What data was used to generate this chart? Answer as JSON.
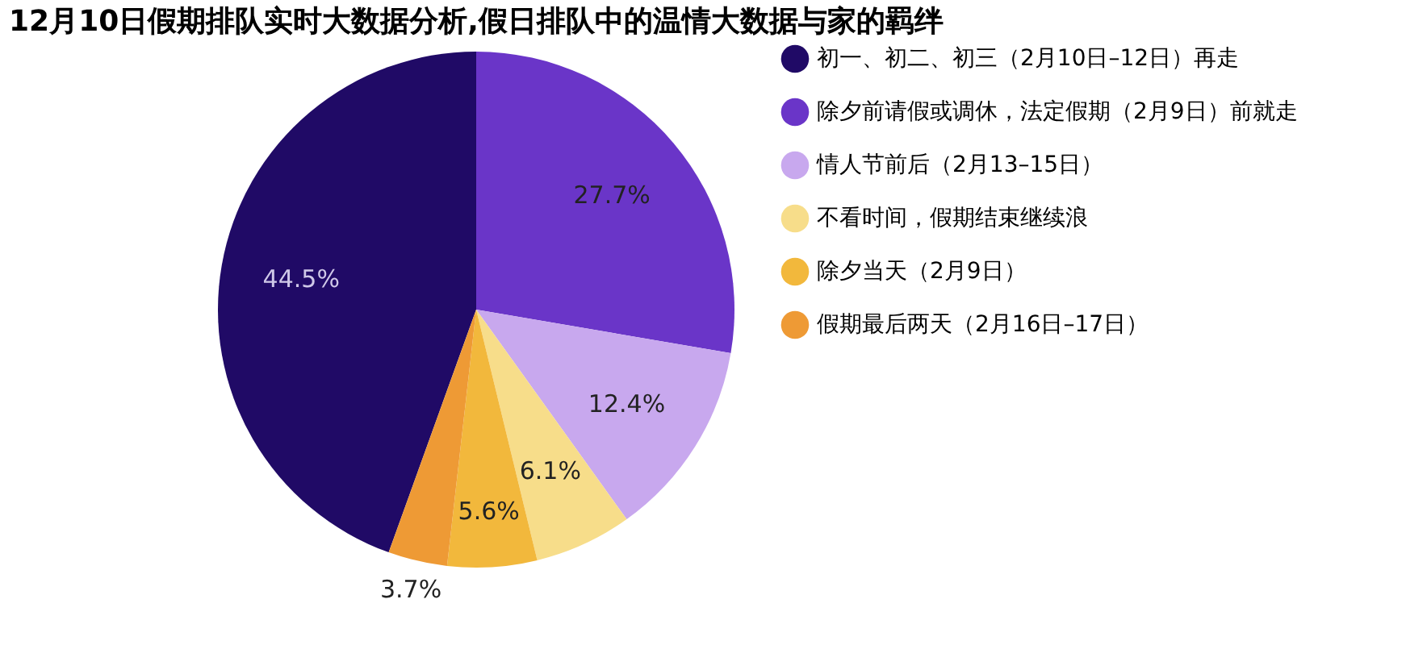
{
  "chart_data": {
    "type": "pie",
    "title": "12月10日假期排队实时大数据分析,假日排队中的温情大数据与家的羁绊",
    "categories": [
      "初一、初二、初三（2月10日–12日）再走",
      "除夕前请假或调休，法定假期（2月9日）前就走",
      "情人节前后（2月13–15日）",
      "不看时间，假期结束继续浪",
      "除夕当天（2月9日）",
      "假期最后两天（2月16日–17日）"
    ],
    "values": [
      44.5,
      27.7,
      12.4,
      6.1,
      5.6,
      3.7
    ],
    "colors": [
      "#200a66",
      "#6a35c8",
      "#c8a8ee",
      "#f7dd8a",
      "#f2b83c",
      "#ee9a35"
    ],
    "value_labels": [
      "44.5%",
      "27.7%",
      "12.4%",
      "6.1%",
      "5.6%",
      "3.7%"
    ],
    "legend": "right"
  }
}
